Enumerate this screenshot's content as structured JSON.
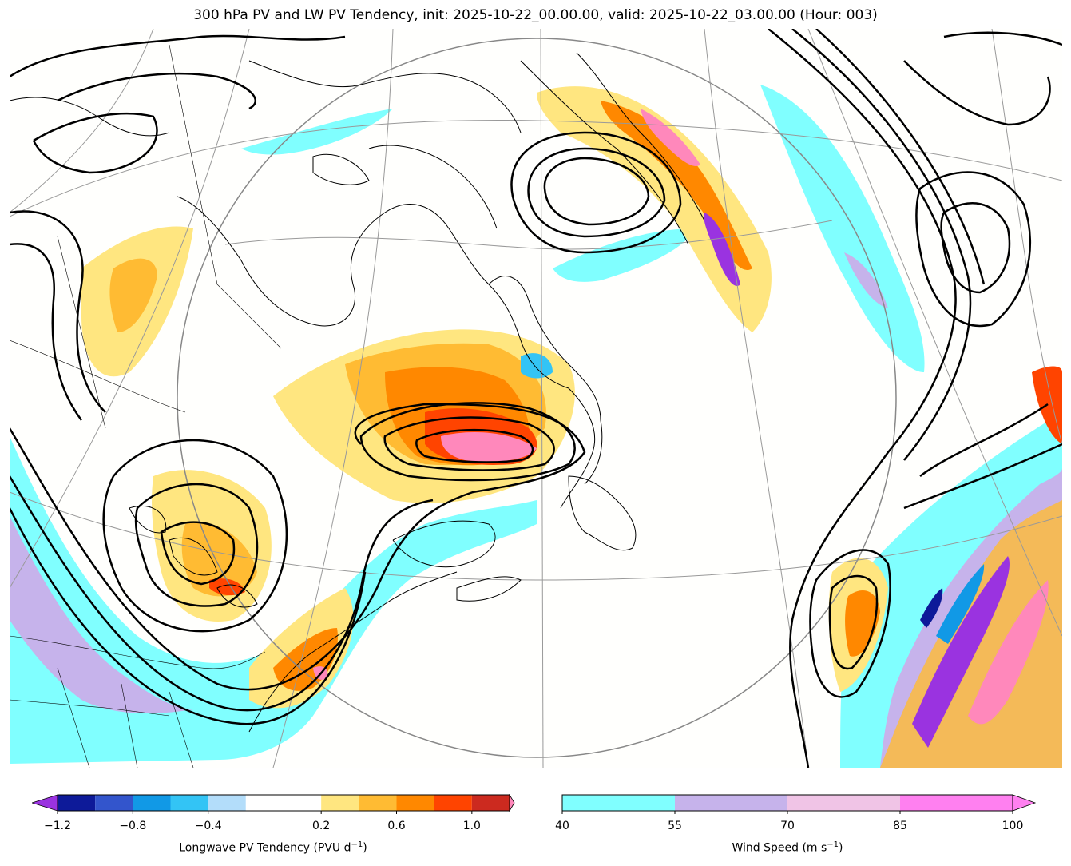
{
  "title": "300 hPa PV and LW PV Tendency, init: 2025-10-22_00.00.00, valid: 2025-10-22_03.00.00 (Hour: 003)",
  "colorbars": {
    "pv_tendency": {
      "label": "Longwave PV Tendency (PVU d",
      "label_sup": "−1",
      "label_end": ")",
      "tick_labels": [
        "−1.2",
        "−0.8",
        "−0.4",
        "0.2",
        "0.6",
        "1.0"
      ],
      "ticks": [
        -1.2,
        -0.8,
        -0.4,
        0.2,
        0.6,
        1.0
      ],
      "bounds": [
        -1.2,
        -1.0,
        -0.8,
        -0.6,
        -0.4,
        -0.2,
        0.2,
        0.4,
        0.6,
        0.8,
        1.0,
        1.2
      ],
      "colors": [
        "#0d1a99",
        "#3355cc",
        "#1199e6",
        "#33c4f5",
        "#b3ddfa",
        "#ffffff",
        "#ffe680",
        "#ffbb33",
        "#ff8800",
        "#ff4400",
        "#cc2a1f"
      ],
      "under_color": "#9a33e0",
      "over_color": "#ff88bb"
    },
    "wind_speed": {
      "label": "Wind Speed (m s",
      "label_sup": "−1",
      "label_end": ")",
      "tick_labels": [
        "40",
        "55",
        "70",
        "85",
        "100"
      ],
      "bounds": [
        40,
        55,
        70,
        85,
        100
      ],
      "colors": [
        "#80ffff",
        "#c6b3eb",
        "#f0c4e6",
        "#ff80f0"
      ],
      "over_color": "#ff80f0"
    }
  },
  "colors": {
    "wind_40": "#80ffff",
    "wind_55": "#c6b3eb",
    "pos_02": "#ffe680",
    "pos_04": "#ffbb33",
    "pos_06": "#ff8800",
    "pos_08": "#ff4400",
    "pos_10": "#cc2a1f",
    "pos_max": "#ff88bb",
    "neg_min": "#9a33e0",
    "neg_04": "#33c4f5",
    "neg_02": "#b3ddfa",
    "coast": "#000000",
    "grid": "#999999"
  }
}
